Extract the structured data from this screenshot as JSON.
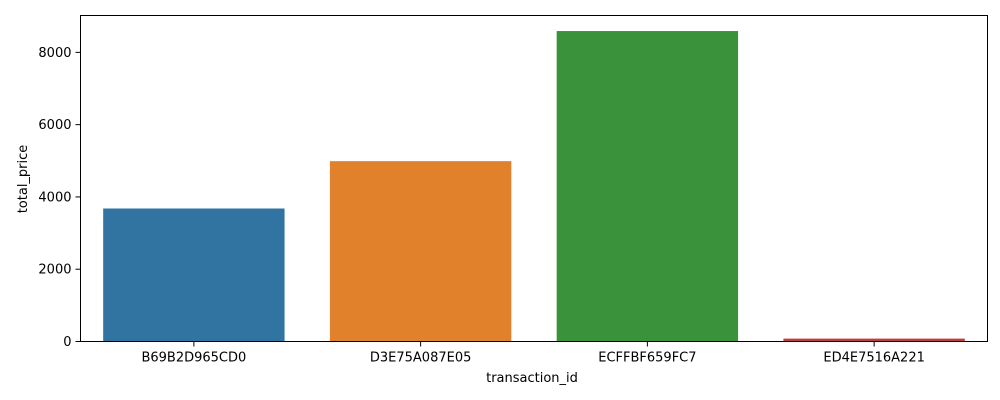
{
  "chart_data": {
    "type": "bar",
    "title": "",
    "xlabel": "transaction_id",
    "ylabel": "total_price",
    "categories": [
      "B69B2D965CD0",
      "D3E75A087E05",
      "ECFFBF659FC7",
      "ED4E7516A221"
    ],
    "values": [
      3680,
      4990,
      8590,
      80
    ],
    "ylim": [
      0,
      9020
    ],
    "yticks": [
      0,
      2000,
      4000,
      6000,
      8000
    ],
    "ytick_labels": [
      "0",
      "2000",
      "4000",
      "6000",
      "8000"
    ],
    "colors": [
      "#3274a1",
      "#e1812c",
      "#3a923a",
      "#c03d3e"
    ],
    "grid": false,
    "legend": "none"
  }
}
